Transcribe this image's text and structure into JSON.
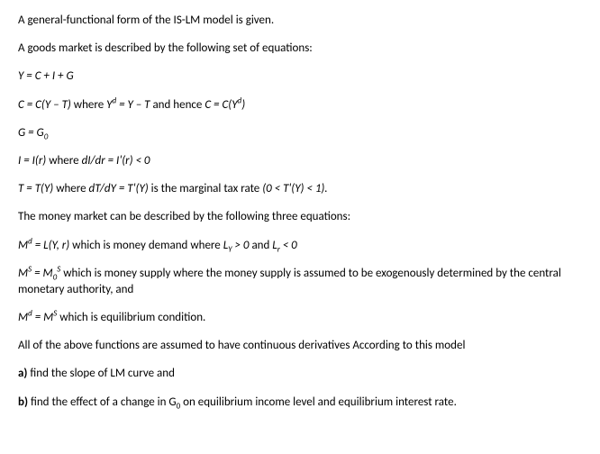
{
  "p1": "A general-functional form of the IS-LM model is given.",
  "p2": "A goods market is described by the following set of equations:",
  "eq1": "Y = C + I + G",
  "eq2_a": "C = C(Y – T)",
  "eq2_where": " where   ",
  "eq2_b": "Y",
  "eq2_b_sup": "d",
  "eq2_c": " = Y – T",
  "eq2_hence": " and hence ",
  "eq2_d": "C = C(Y",
  "eq2_d_sup": "d",
  "eq2_e": ")",
  "eq3_a": "G = G",
  "eq3_sub": "0",
  "eq4_a": "I = I(r)",
  "eq4_where": " where ",
  "eq4_b": "dI/dr = I'(r) < 0",
  "eq5_a": "T = T(Y) ",
  "eq5_where": " where ",
  "eq5_b": "dT/dY = T'(Y)",
  "eq5_c": " is the marginal tax rate ",
  "eq5_d": "(0 < T'(Y) < 1).",
  "p3": "The money market can be described by the following three equations:",
  "eq6_a": "M",
  "eq6_sup1": "d",
  "eq6_b": " = L(Y, r)",
  "eq6_c": " which is money demand where ",
  "eq6_d": "L",
  "eq6_sub1": "Y",
  "eq6_e": " > 0",
  "eq6_f": " and ",
  "eq6_g": "L",
  "eq6_sub2": "r",
  "eq6_h": " < 0",
  "eq7_a": "M",
  "eq7_sup1": "S",
  "eq7_b": " = M",
  "eq7_sub1": "0",
  "eq7_sup2": "S",
  "eq7_c": "  which is money supply where the money supply is assumed to be exogenously determined by the central monetary authority, and",
  "eq8_a": "M",
  "eq8_sup1": "d",
  "eq8_b": " = M",
  "eq8_sup2": "S",
  "eq8_c": " which is equilibrium condition.",
  "p4": "All of the above functions are assumed to have continuous derivatives According to this model",
  "qa_label": "a)",
  "qa_text": " find the slope of LM curve and",
  "qb_label": "b)",
  "qb_text_a": " find the effect of a change in G",
  "qb_sub": "0",
  "qb_text_b": " on equilibrium income level and equilibrium interest rate."
}
